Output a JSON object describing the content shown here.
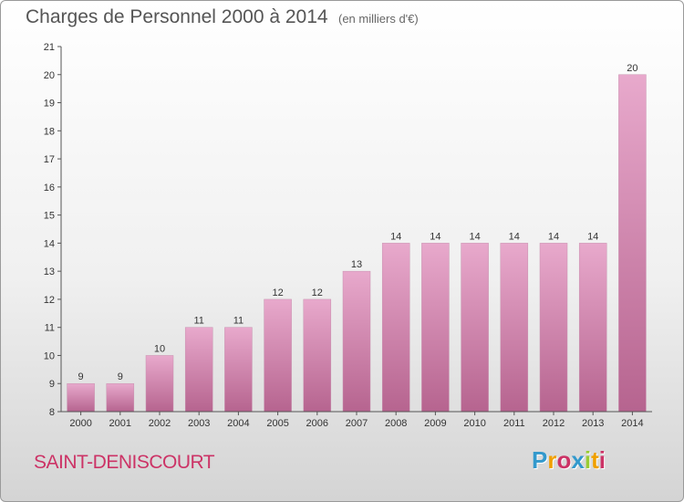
{
  "header": {
    "title": "Charges de Personnel 2000 à 2014",
    "subtitle": "(en milliers d'€)"
  },
  "footer": {
    "commune": "SAINT-DENISCOURT",
    "logo": {
      "letters": [
        "P",
        "r",
        "o",
        "x",
        "i",
        "t",
        "i"
      ],
      "colors": [
        "#3399cc",
        "#f0a000",
        "#cc3366",
        "#3399cc",
        "#99cc33",
        "#f0a000",
        "#cc3366"
      ]
    }
  },
  "chart_data": {
    "type": "bar",
    "categories": [
      "2000",
      "2001",
      "2002",
      "2003",
      "2004",
      "2005",
      "2006",
      "2007",
      "2008",
      "2009",
      "2010",
      "2011",
      "2012",
      "2013",
      "2014"
    ],
    "values": [
      9,
      9,
      10,
      11,
      11,
      12,
      12,
      13,
      14,
      14,
      14,
      14,
      14,
      14,
      20
    ],
    "ylim": [
      8,
      21
    ],
    "yticks": [
      8,
      9,
      10,
      11,
      12,
      13,
      14,
      15,
      16,
      17,
      18,
      19,
      20,
      21
    ],
    "grid": false,
    "legend": "none",
    "bar_color": "#d4699f"
  }
}
